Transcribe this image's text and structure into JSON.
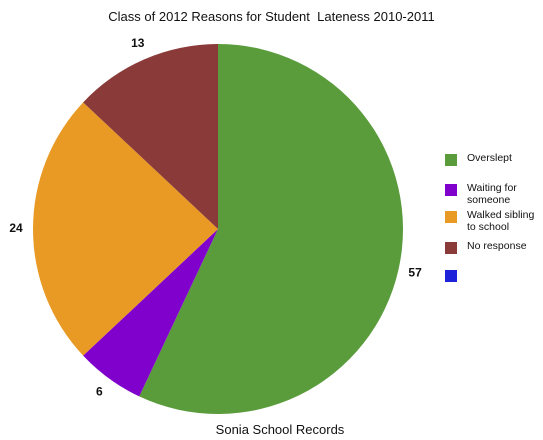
{
  "chart_data": {
    "type": "pie",
    "title": "Class of 2012 Reasons for Student  Lateness 2010-2011",
    "caption": "Sonia School Records",
    "legend_position": "right",
    "slices": [
      {
        "label": "Overslept",
        "value": 57,
        "color": "#5a9c3c"
      },
      {
        "label": "Waiting for someone",
        "value": 6,
        "color": "#8000cc"
      },
      {
        "label": "Walked sibling to school",
        "value": 24,
        "color": "#e89a24"
      },
      {
        "label": "No response",
        "value": 13,
        "color": "#8b3a3a"
      }
    ],
    "legend": [
      {
        "label": "Overslept",
        "color": "#5a9c3c"
      },
      {
        "label": "Waiting for someone",
        "color": "#8000cc"
      },
      {
        "label": "Walked sibling to school",
        "color": "#e89a24"
      },
      {
        "label": "No response",
        "color": "#8b3a3a"
      },
      {
        "label": "",
        "color": "#1e22d8"
      }
    ]
  }
}
